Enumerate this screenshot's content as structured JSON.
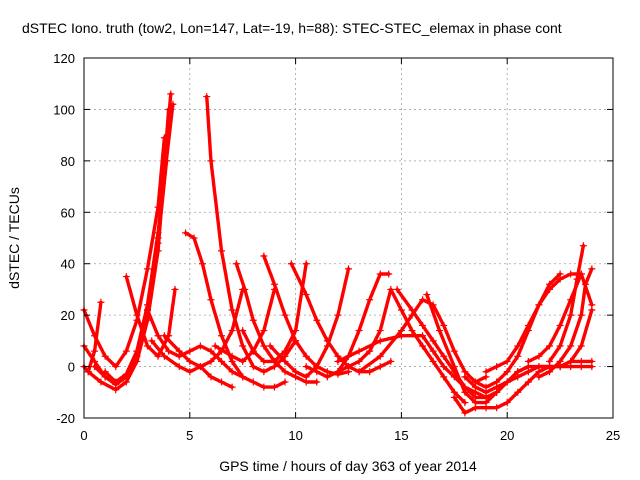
{
  "chart_data": {
    "type": "scatter",
    "title": "dSTEC Iono. truth (tow2, Lon=147, Lat=-19, h=88): STEC-STEC_elemax in phase cont",
    "xlabel": "GPS time / hours of day 363 of year 2014",
    "ylabel": "dSTEC  / TECUs",
    "xlim": [
      0,
      25
    ],
    "ylim": [
      -20,
      120
    ],
    "xticks": [
      0,
      5,
      10,
      15,
      20,
      25
    ],
    "yticks": [
      -20,
      0,
      20,
      40,
      60,
      80,
      100,
      120
    ],
    "grid": true,
    "color": "#ff0000",
    "marker": "plus",
    "series": [
      {
        "x": [
          0.0,
          0.5,
          1.0,
          1.5,
          2.0,
          2.5,
          3.0,
          3.5,
          3.8
        ],
        "y": [
          22,
          12,
          4,
          0,
          6,
          18,
          38,
          62,
          89
        ]
      },
      {
        "x": [
          0.0,
          0.2,
          0.5,
          0.8
        ],
        "y": [
          0,
          -2,
          6,
          25
        ]
      },
      {
        "x": [
          0.0,
          0.5,
          1.0,
          1.5,
          2.0,
          2.5,
          3.0,
          3.5,
          3.9
        ],
        "y": [
          8,
          2,
          -4,
          -6,
          -3,
          6,
          22,
          48,
          80
        ]
      },
      {
        "x": [
          0.2,
          0.8,
          1.5,
          2.0,
          2.5,
          3.0,
          3.5,
          4.0
        ],
        "y": [
          -2,
          -6,
          -9,
          -6,
          2,
          18,
          45,
          100
        ]
      },
      {
        "x": [
          0.5,
          1.0,
          1.5,
          2.0,
          2.5,
          3.0,
          3.5,
          4.1
        ],
        "y": [
          0,
          -4,
          -7,
          -4,
          4,
          22,
          50,
          106
        ]
      },
      {
        "x": [
          1.0,
          1.5,
          2.0,
          2.5,
          3.0,
          3.5,
          4.2
        ],
        "y": [
          -2,
          -6,
          -3,
          6,
          24,
          52,
          102
        ]
      },
      {
        "x": [
          2.0,
          2.5,
          3.0,
          3.5,
          4.0,
          4.3
        ],
        "y": [
          35,
          20,
          8,
          4,
          12,
          30
        ]
      },
      {
        "x": [
          3.0,
          3.5,
          4.0,
          4.5,
          5.0,
          5.5,
          6.0,
          6.5,
          7.0,
          7.5
        ],
        "y": [
          22,
          12,
          6,
          4,
          6,
          8,
          6,
          2,
          -2,
          -4
        ]
      },
      {
        "x": [
          3.2,
          3.8,
          4.5,
          5.0,
          5.5,
          6.0,
          6.5,
          7.0,
          7.5
        ],
        "y": [
          10,
          4,
          0,
          -2,
          0,
          2,
          6,
          14,
          30
        ]
      },
      {
        "x": [
          4.8,
          5.2,
          5.6,
          6.0,
          6.5,
          7.0,
          7.5,
          8.0,
          8.5,
          9.0,
          9.5
        ],
        "y": [
          52,
          50,
          40,
          26,
          12,
          2,
          -4,
          -6,
          -8,
          -8,
          -6
        ]
      },
      {
        "x": [
          5.8,
          6.0,
          6.5,
          7.0,
          7.5,
          8.0,
          8.5,
          9.0,
          9.5,
          10.0
        ],
        "y": [
          105,
          80,
          45,
          22,
          8,
          0,
          -2,
          0,
          4,
          10
        ]
      },
      {
        "x": [
          3.8,
          4.5,
          5.0,
          5.5,
          6.0,
          6.5,
          7.0
        ],
        "y": [
          12,
          6,
          2,
          0,
          -4,
          -6,
          -8
        ]
      },
      {
        "x": [
          6.2,
          7.0,
          7.5,
          8.0,
          8.5,
          9.0
        ],
        "y": [
          8,
          4,
          2,
          6,
          14,
          30
        ]
      },
      {
        "x": [
          7.2,
          7.6,
          8.0,
          8.5,
          9.0,
          9.5,
          10.0,
          10.5,
          11.0
        ],
        "y": [
          40,
          30,
          18,
          8,
          2,
          -2,
          -4,
          -6,
          -6
        ]
      },
      {
        "x": [
          7.5,
          8.0,
          8.5,
          9.0,
          9.5,
          10.0,
          10.5
        ],
        "y": [
          14,
          6,
          2,
          2,
          6,
          14,
          40
        ]
      },
      {
        "x": [
          8.5,
          9.0,
          9.5,
          10.0,
          10.5,
          11.0,
          11.5,
          12.0,
          12.5
        ],
        "y": [
          43,
          32,
          20,
          10,
          4,
          0,
          -2,
          -3,
          -2
        ]
      },
      {
        "x": [
          8.8,
          9.5,
          10.0,
          10.5,
          11.0,
          11.5,
          12.0,
          12.5
        ],
        "y": [
          8,
          2,
          -2,
          -4,
          0,
          8,
          20,
          38
        ]
      },
      {
        "x": [
          9.8,
          10.5,
          11.0,
          11.5,
          12.0,
          12.5,
          13.0,
          13.5,
          14.0,
          14.5
        ],
        "y": [
          40,
          28,
          18,
          10,
          4,
          0,
          -2,
          -2,
          0,
          2
        ]
      },
      {
        "x": [
          10.5,
          11.0,
          11.5,
          12.0,
          12.5,
          13.0,
          13.5,
          14.0,
          14.4
        ],
        "y": [
          0,
          -2,
          -4,
          -2,
          4,
          14,
          26,
          36,
          36
        ]
      },
      {
        "x": [
          12.0,
          12.5,
          13.0,
          13.5,
          14.0,
          14.5,
          15.0,
          15.5,
          16.0,
          16.5,
          17.0,
          17.5,
          18.0
        ],
        "y": [
          -2,
          0,
          2,
          6,
          14,
          30,
          22,
          14,
          8,
          2,
          -4,
          -10,
          -14
        ]
      },
      {
        "x": [
          12.0,
          13.0,
          14.0,
          15.0,
          16.0,
          16.5,
          17.0,
          17.5,
          18.0,
          18.5,
          19.0,
          19.5
        ],
        "y": [
          2,
          6,
          10,
          12,
          12,
          6,
          0,
          -4,
          -8,
          -10,
          -12,
          -10
        ]
      },
      {
        "x": [
          13.0,
          14.0,
          15.0,
          15.5,
          16.0,
          16.5,
          17.0,
          17.5,
          18.0,
          18.5,
          19.0
        ],
        "y": [
          -2,
          4,
          14,
          20,
          26,
          24,
          16,
          6,
          -2,
          -6,
          -4
        ]
      },
      {
        "x": [
          14.8,
          15.5,
          16.0,
          16.5,
          17.0,
          17.5,
          18.0,
          18.5,
          19.0,
          19.5,
          20.0,
          20.5,
          21.0
        ],
        "y": [
          30,
          22,
          16,
          10,
          4,
          -2,
          -8,
          -12,
          -12,
          -10,
          -6,
          -2,
          0
        ]
      },
      {
        "x": [
          16.2,
          16.8,
          17.5,
          18.0,
          18.5,
          19.0,
          19.5,
          20.0,
          20.5,
          21.0,
          21.5,
          22.0
        ],
        "y": [
          28,
          14,
          0,
          -10,
          -14,
          -14,
          -10,
          -6,
          -2,
          0,
          0,
          0
        ]
      },
      {
        "x": [
          17.5,
          18.0,
          18.5,
          19.0,
          19.5,
          20.0,
          20.5,
          21.0,
          21.5,
          22.0,
          22.5,
          23.0,
          23.5,
          24.0
        ],
        "y": [
          -12,
          -18,
          -16,
          -16,
          -16,
          -14,
          -10,
          -6,
          -2,
          0,
          0,
          0,
          0,
          0
        ]
      },
      {
        "x": [
          18.0,
          18.5,
          19.0,
          19.5,
          20.0,
          20.5,
          21.0,
          21.5,
          22.0,
          22.5,
          23.0,
          23.5,
          24.0
        ],
        "y": [
          -4,
          -8,
          -10,
          -8,
          -6,
          -4,
          -2,
          0,
          0,
          0,
          2,
          2,
          2
        ]
      },
      {
        "x": [
          18.5,
          19.0,
          19.5,
          20.0,
          20.5,
          21.0,
          21.5,
          22.0,
          22.5
        ],
        "y": [
          -6,
          -8,
          -6,
          -2,
          4,
          14,
          24,
          32,
          36
        ]
      },
      {
        "x": [
          19.0,
          19.5,
          20.0,
          20.5,
          21.0,
          21.5,
          22.0,
          22.5,
          23.0,
          23.5
        ],
        "y": [
          -2,
          0,
          2,
          8,
          16,
          24,
          30,
          34,
          36,
          36
        ]
      },
      {
        "x": [
          21.0,
          21.5,
          22.0,
          22.5,
          23.0,
          23.5,
          24.0
        ],
        "y": [
          2,
          4,
          8,
          16,
          26,
          36,
          24
        ]
      },
      {
        "x": [
          21.5,
          22.0,
          22.5,
          23.0,
          23.5,
          23.7,
          24.0
        ],
        "y": [
          -4,
          -2,
          2,
          8,
          20,
          32,
          38
        ]
      },
      {
        "x": [
          22.0,
          22.5,
          23.0,
          23.3,
          23.6
        ],
        "y": [
          2,
          8,
          20,
          34,
          47
        ]
      },
      {
        "x": [
          22.5,
          23.0,
          23.5,
          24.0
        ],
        "y": [
          0,
          2,
          8,
          22
        ]
      }
    ]
  }
}
